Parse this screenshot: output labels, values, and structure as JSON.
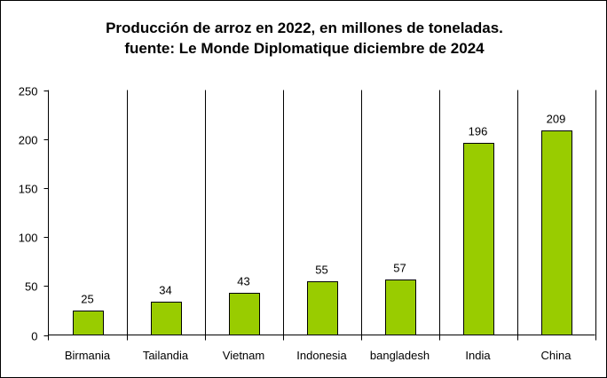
{
  "chart_data": {
    "type": "bar",
    "title": "Producción de arroz en 2022, en millones de toneladas.",
    "subtitle": "fuente: Le Monde Diplomatique diciembre de 2024",
    "xlabel": "",
    "ylabel": "",
    "categories": [
      "Birmania",
      "Tailandia",
      "Vietnam",
      "Indonesia",
      "bangladesh",
      "India",
      "China"
    ],
    "values": [
      25,
      34,
      43,
      55,
      57,
      196,
      209
    ],
    "data_labels": [
      "25",
      "34",
      "43",
      "55",
      "57",
      "196",
      "209"
    ],
    "ylim": [
      0,
      250
    ],
    "yticks": [
      0,
      50,
      100,
      150,
      200,
      250
    ],
    "ytick_labels": [
      "0",
      "50",
      "100",
      "150",
      "200",
      "250"
    ],
    "grid": false,
    "legend": "none",
    "bar_color": "#99CC00"
  }
}
